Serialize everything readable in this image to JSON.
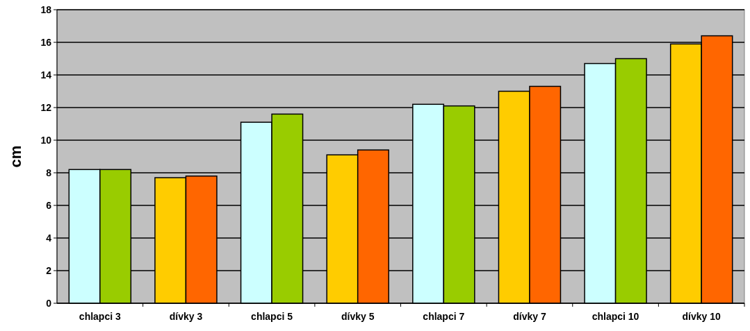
{
  "chart_data": {
    "type": "bar",
    "ylabel": "cm",
    "categories": [
      "chlapci 3",
      "dívky 3",
      "chlapci 5",
      "dívky 5",
      "chlapci 7",
      "dívky 7",
      "chlapci 10",
      "dívky 10"
    ],
    "series": [
      {
        "colors": [
          "#ccffff",
          "#ffcc00",
          "#ccffff",
          "#ffcc00",
          "#ccffff",
          "#ffcc00",
          "#ccffff",
          "#ffcc00"
        ],
        "values": [
          8.2,
          7.7,
          11.1,
          9.1,
          12.2,
          13.0,
          14.7,
          15.9
        ]
      },
      {
        "colors": [
          "#99cc00",
          "#ff6600",
          "#99cc00",
          "#ff6600",
          "#99cc00",
          "#ff6600",
          "#99cc00",
          "#ff6600"
        ],
        "values": [
          8.2,
          7.8,
          11.6,
          9.4,
          12.1,
          13.3,
          15.0,
          16.4
        ]
      }
    ],
    "ylim": [
      0,
      18
    ],
    "yticks": [
      0,
      2,
      4,
      6,
      8,
      10,
      12,
      14,
      16,
      18
    ],
    "grid": "y"
  }
}
